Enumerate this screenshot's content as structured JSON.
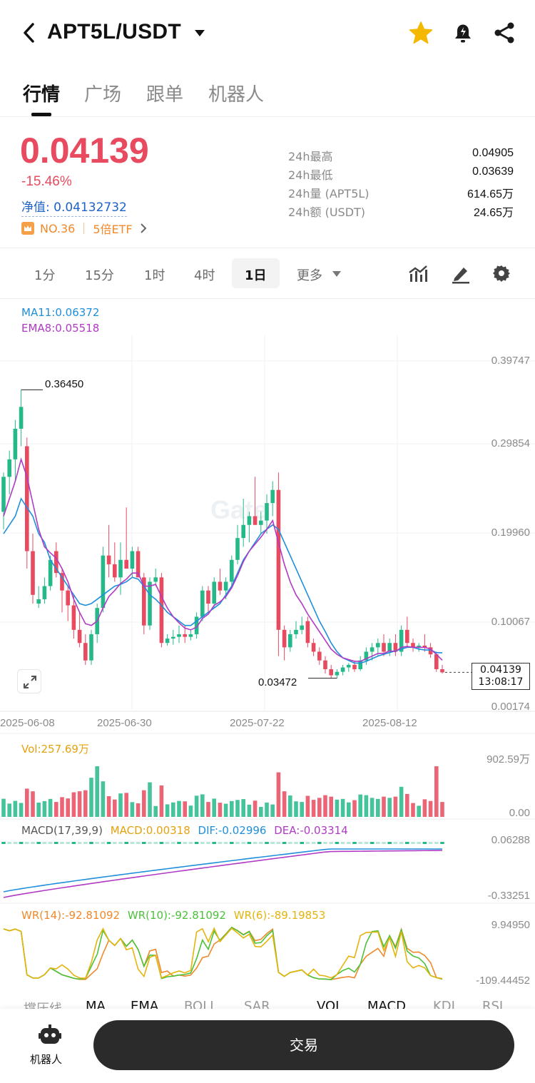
{
  "header": {
    "pair": "APT5L/USDT",
    "icons": [
      "back-icon",
      "caret-down-icon",
      "star-icon",
      "bell-icon",
      "share-icon"
    ],
    "star_color": "#f5b800"
  },
  "tabs": [
    {
      "label": "行情",
      "active": true
    },
    {
      "label": "广场",
      "active": false
    },
    {
      "label": "跟单",
      "active": false
    },
    {
      "label": "机器人",
      "active": false
    }
  ],
  "ticker": {
    "price": "0.04139",
    "change": "-15.46%",
    "nav": "净值: 0.04132732",
    "rank": "NO.36",
    "etf": "5倍ETF",
    "stats": [
      {
        "label": "24h最高",
        "value": "0.04905"
      },
      {
        "label": "24h最低",
        "value": "0.03639"
      },
      {
        "label": "24h量 (APT5L)",
        "value": "614.65万"
      },
      {
        "label": "24h额 (USDT)",
        "value": "24.65万"
      }
    ],
    "down_color": "#e84a5f",
    "up_color": "#25b98a"
  },
  "timeframes": {
    "items": [
      "1分",
      "15分",
      "1时",
      "4时",
      "1日",
      "更多"
    ],
    "selected": "1日",
    "tools": [
      "indicator-icon",
      "draw-icon",
      "gear-icon"
    ]
  },
  "chart": {
    "legend_ma": "MA11:0.06372",
    "legend_ema": "EMA8:0.05518",
    "watermark": "Gate",
    "y_ticks": [
      "0.39747",
      "0.29854",
      "0.19960",
      "0.10067",
      "0.00174"
    ],
    "x_ticks": [
      "2025-06-08",
      "2025-06-30",
      "2025-07-22",
      "2025-08-12"
    ],
    "high_mark": "0.36450",
    "low_mark": "0.03472",
    "last_price": "0.04139",
    "countdown": "13:08:17",
    "ma_color": "#1f8fdc",
    "ema_color": "#b03ac4"
  },
  "volume": {
    "legend": "Vol:257.69万",
    "y_ticks": [
      "902.59万",
      "0.00"
    ]
  },
  "macd": {
    "title": "MACD(17,39,9)",
    "macd": "MACD:0.00318",
    "dif": "DIF:-0.02996",
    "dea": "DEA:-0.03314",
    "y_ticks": [
      "0.06288",
      "-0.33251"
    ]
  },
  "wr": {
    "wr14": "WR(14):-92.81092",
    "wr10": "WR(10):-92.81092",
    "wr6": "WR(6):-89.19853",
    "y_ticks": [
      "9.94950",
      "-109.44452"
    ]
  },
  "indicator_tabs": [
    "撑压线",
    "MA",
    "EMA",
    "BOLL",
    "SAR",
    "VOL",
    "MACD",
    "KDJ",
    "RSI"
  ],
  "bottom": {
    "robot_label": "机器人",
    "trade_label": "交易"
  },
  "chart_data": {
    "type": "candlestick",
    "x_range": [
      "2025-05-31",
      "2025-08-23"
    ],
    "y_range": [
      0.00174,
      0.39747
    ],
    "candles": [
      {
        "o": 0.225,
        "h": 0.27,
        "l": 0.205,
        "c": 0.265
      },
      {
        "o": 0.265,
        "h": 0.295,
        "l": 0.245,
        "c": 0.285
      },
      {
        "o": 0.285,
        "h": 0.33,
        "l": 0.26,
        "c": 0.32
      },
      {
        "o": 0.32,
        "h": 0.3645,
        "l": 0.3,
        "c": 0.345
      },
      {
        "o": 0.3,
        "h": 0.31,
        "l": 0.16,
        "c": 0.18
      },
      {
        "o": 0.18,
        "h": 0.2,
        "l": 0.12,
        "c": 0.13
      },
      {
        "o": 0.12,
        "h": 0.14,
        "l": 0.115,
        "c": 0.125
      },
      {
        "o": 0.125,
        "h": 0.15,
        "l": 0.12,
        "c": 0.14
      },
      {
        "o": 0.14,
        "h": 0.175,
        "l": 0.135,
        "c": 0.17
      },
      {
        "o": 0.18,
        "h": 0.19,
        "l": 0.15,
        "c": 0.155
      },
      {
        "o": 0.155,
        "h": 0.16,
        "l": 0.11,
        "c": 0.135
      },
      {
        "o": 0.135,
        "h": 0.14,
        "l": 0.1,
        "c": 0.118
      },
      {
        "o": 0.118,
        "h": 0.13,
        "l": 0.08,
        "c": 0.09
      },
      {
        "o": 0.09,
        "h": 0.11,
        "l": 0.07,
        "c": 0.075
      },
      {
        "o": 0.075,
        "h": 0.085,
        "l": 0.05,
        "c": 0.055
      },
      {
        "o": 0.055,
        "h": 0.09,
        "l": 0.05,
        "c": 0.085
      },
      {
        "o": 0.085,
        "h": 0.12,
        "l": 0.075,
        "c": 0.115
      },
      {
        "o": 0.115,
        "h": 0.185,
        "l": 0.11,
        "c": 0.175
      },
      {
        "o": 0.175,
        "h": 0.21,
        "l": 0.15,
        "c": 0.165
      },
      {
        "o": 0.165,
        "h": 0.19,
        "l": 0.145,
        "c": 0.15
      },
      {
        "o": 0.15,
        "h": 0.19,
        "l": 0.13,
        "c": 0.17
      },
      {
        "o": 0.17,
        "h": 0.23,
        "l": 0.16,
        "c": 0.16
      },
      {
        "o": 0.16,
        "h": 0.185,
        "l": 0.15,
        "c": 0.18
      },
      {
        "o": 0.18,
        "h": 0.185,
        "l": 0.15,
        "c": 0.15
      },
      {
        "o": 0.15,
        "h": 0.155,
        "l": 0.085,
        "c": 0.095
      },
      {
        "o": 0.095,
        "h": 0.15,
        "l": 0.09,
        "c": 0.145
      },
      {
        "o": 0.145,
        "h": 0.16,
        "l": 0.14,
        "c": 0.15
      },
      {
        "o": 0.15,
        "h": 0.155,
        "l": 0.07,
        "c": 0.075
      },
      {
        "o": 0.075,
        "h": 0.085,
        "l": 0.072,
        "c": 0.08
      },
      {
        "o": 0.08,
        "h": 0.09,
        "l": 0.073,
        "c": 0.082
      },
      {
        "o": 0.082,
        "h": 0.095,
        "l": 0.075,
        "c": 0.085
      },
      {
        "o": 0.085,
        "h": 0.095,
        "l": 0.075,
        "c": 0.082
      },
      {
        "o": 0.082,
        "h": 0.09,
        "l": 0.078,
        "c": 0.085
      },
      {
        "o": 0.085,
        "h": 0.11,
        "l": 0.08,
        "c": 0.105
      },
      {
        "o": 0.105,
        "h": 0.14,
        "l": 0.1,
        "c": 0.135
      },
      {
        "o": 0.135,
        "h": 0.14,
        "l": 0.11,
        "c": 0.12
      },
      {
        "o": 0.12,
        "h": 0.15,
        "l": 0.115,
        "c": 0.145
      },
      {
        "o": 0.145,
        "h": 0.16,
        "l": 0.13,
        "c": 0.135
      },
      {
        "o": 0.135,
        "h": 0.15,
        "l": 0.125,
        "c": 0.145
      },
      {
        "o": 0.145,
        "h": 0.175,
        "l": 0.14,
        "c": 0.17
      },
      {
        "o": 0.17,
        "h": 0.21,
        "l": 0.165,
        "c": 0.195
      },
      {
        "o": 0.195,
        "h": 0.24,
        "l": 0.185,
        "c": 0.21
      },
      {
        "o": 0.21,
        "h": 0.225,
        "l": 0.19,
        "c": 0.22
      },
      {
        "o": 0.22,
        "h": 0.265,
        "l": 0.21,
        "c": 0.21
      },
      {
        "o": 0.21,
        "h": 0.225,
        "l": 0.2,
        "c": 0.215
      },
      {
        "o": 0.215,
        "h": 0.245,
        "l": 0.2,
        "c": 0.235
      },
      {
        "o": 0.235,
        "h": 0.26,
        "l": 0.22,
        "c": 0.25
      },
      {
        "o": 0.25,
        "h": 0.27,
        "l": 0.06,
        "c": 0.09
      },
      {
        "o": 0.09,
        "h": 0.095,
        "l": 0.055,
        "c": 0.07
      },
      {
        "o": 0.07,
        "h": 0.09,
        "l": 0.065,
        "c": 0.085
      },
      {
        "o": 0.085,
        "h": 0.1,
        "l": 0.08,
        "c": 0.09
      },
      {
        "o": 0.09,
        "h": 0.105,
        "l": 0.085,
        "c": 0.095
      },
      {
        "o": 0.1,
        "h": 0.105,
        "l": 0.07,
        "c": 0.075
      },
      {
        "o": 0.075,
        "h": 0.08,
        "l": 0.06,
        "c": 0.065
      },
      {
        "o": 0.065,
        "h": 0.07,
        "l": 0.05,
        "c": 0.055
      },
      {
        "o": 0.055,
        "h": 0.06,
        "l": 0.04,
        "c": 0.045
      },
      {
        "o": 0.045,
        "h": 0.05,
        "l": 0.035,
        "c": 0.038
      },
      {
        "o": 0.038,
        "h": 0.045,
        "l": 0.0347,
        "c": 0.042
      },
      {
        "o": 0.042,
        "h": 0.05,
        "l": 0.038,
        "c": 0.047
      },
      {
        "o": 0.047,
        "h": 0.052,
        "l": 0.042,
        "c": 0.05
      },
      {
        "o": 0.05,
        "h": 0.055,
        "l": 0.042,
        "c": 0.045
      },
      {
        "o": 0.045,
        "h": 0.06,
        "l": 0.043,
        "c": 0.055
      },
      {
        "o": 0.055,
        "h": 0.07,
        "l": 0.05,
        "c": 0.065
      },
      {
        "o": 0.065,
        "h": 0.075,
        "l": 0.055,
        "c": 0.07
      },
      {
        "o": 0.07,
        "h": 0.08,
        "l": 0.06,
        "c": 0.075
      },
      {
        "o": 0.075,
        "h": 0.085,
        "l": 0.06,
        "c": 0.065
      },
      {
        "o": 0.065,
        "h": 0.08,
        "l": 0.06,
        "c": 0.075
      },
      {
        "o": 0.075,
        "h": 0.085,
        "l": 0.06,
        "c": 0.065
      },
      {
        "o": 0.065,
        "h": 0.095,
        "l": 0.06,
        "c": 0.09
      },
      {
        "o": 0.09,
        "h": 0.105,
        "l": 0.07,
        "c": 0.075
      },
      {
        "o": 0.075,
        "h": 0.08,
        "l": 0.065,
        "c": 0.07
      },
      {
        "o": 0.07,
        "h": 0.075,
        "l": 0.065,
        "c": 0.072
      },
      {
        "o": 0.072,
        "h": 0.085,
        "l": 0.065,
        "c": 0.07
      },
      {
        "o": 0.07,
        "h": 0.075,
        "l": 0.058,
        "c": 0.062
      },
      {
        "o": 0.062,
        "h": 0.065,
        "l": 0.042,
        "c": 0.045
      },
      {
        "o": 0.045,
        "h": 0.05,
        "l": 0.04,
        "c": 0.0414
      }
    ],
    "ma11": [
      0.2,
      0.21,
      0.22,
      0.24,
      0.23,
      0.22,
      0.2,
      0.19,
      0.17,
      0.16,
      0.15,
      0.14,
      0.13,
      0.12,
      0.118,
      0.12,
      0.125,
      0.13,
      0.135,
      0.14,
      0.142,
      0.145,
      0.15,
      0.148,
      0.14,
      0.13,
      0.125,
      0.118,
      0.11,
      0.105,
      0.1,
      0.095,
      0.095,
      0.1,
      0.105,
      0.11,
      0.115,
      0.12,
      0.13,
      0.14,
      0.155,
      0.17,
      0.18,
      0.19,
      0.2,
      0.205,
      0.21,
      0.205,
      0.19,
      0.175,
      0.16,
      0.145,
      0.13,
      0.115,
      0.1,
      0.088,
      0.075,
      0.065,
      0.058,
      0.055,
      0.052,
      0.052,
      0.054,
      0.057,
      0.06,
      0.062,
      0.064,
      0.066,
      0.068,
      0.07,
      0.07,
      0.068,
      0.067,
      0.067,
      0.064,
      0.0637
    ],
    "ema8": [
      0.22,
      0.24,
      0.26,
      0.285,
      0.265,
      0.235,
      0.205,
      0.185,
      0.178,
      0.172,
      0.16,
      0.145,
      0.125,
      0.11,
      0.097,
      0.095,
      0.1,
      0.115,
      0.128,
      0.135,
      0.143,
      0.148,
      0.155,
      0.155,
      0.14,
      0.14,
      0.142,
      0.128,
      0.115,
      0.105,
      0.098,
      0.092,
      0.09,
      0.093,
      0.103,
      0.108,
      0.118,
      0.122,
      0.128,
      0.138,
      0.152,
      0.168,
      0.18,
      0.188,
      0.196,
      0.205,
      0.215,
      0.19,
      0.165,
      0.145,
      0.13,
      0.12,
      0.108,
      0.098,
      0.088,
      0.078,
      0.068,
      0.062,
      0.058,
      0.056,
      0.054,
      0.054,
      0.057,
      0.06,
      0.063,
      0.063,
      0.066,
      0.065,
      0.07,
      0.071,
      0.07,
      0.07,
      0.07,
      0.068,
      0.062,
      0.0552
    ],
    "volume_max": 902.59,
    "volume_units": "万"
  }
}
